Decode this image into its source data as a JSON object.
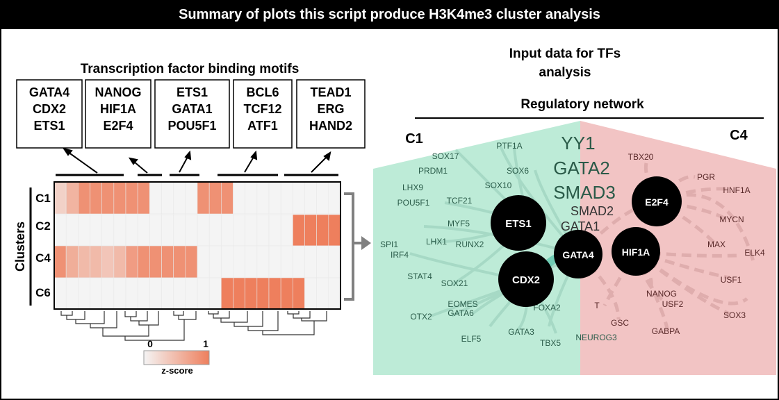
{
  "title": "Summary of plots this script produce H3K4me3 cluster analysis",
  "left": {
    "heading": "Transcription factor binding motifs",
    "motif_boxes": [
      {
        "lines": [
          "GATA4",
          "CDX2",
          "ETS1"
        ]
      },
      {
        "lines": [
          "NANOG",
          "HIF1A",
          "E2F4"
        ]
      },
      {
        "lines": [
          "ETS1",
          "GATA1",
          "POU5F1"
        ]
      },
      {
        "lines": [
          "BCL6",
          "TCF12",
          "ATF1"
        ]
      },
      {
        "lines": [
          "TEAD1",
          "ERG",
          "HAND2"
        ]
      }
    ],
    "clusters_label": "Clusters",
    "cluster_rows": [
      "C1",
      "C2",
      "C4",
      "C6"
    ],
    "colorbar": {
      "min_label": "0",
      "max_label": "1",
      "label": "z-score",
      "low_color": "#f4f4f4",
      "high_color": "#ee7f5d"
    }
  },
  "heatmap": {
    "columns": 24,
    "cells": [
      [
        0.3,
        0.55,
        0.85,
        0.85,
        0.85,
        0.85,
        0.85,
        0.85,
        0,
        0,
        0,
        0,
        0.85,
        0.85,
        0.85,
        0,
        0,
        0,
        0,
        0,
        0,
        0,
        0,
        0
      ],
      [
        0,
        0,
        0,
        0,
        0,
        0,
        0,
        0,
        0,
        0,
        0,
        0,
        0,
        0,
        0,
        0,
        0,
        0,
        0,
        0,
        1,
        1,
        1,
        1
      ],
      [
        0.85,
        0.6,
        0.5,
        0.5,
        0.4,
        0.5,
        0.75,
        0.85,
        0.85,
        0.85,
        0.85,
        0.85,
        0,
        0,
        0,
        0,
        0,
        0,
        0,
        0,
        0,
        0,
        0,
        0
      ],
      [
        0,
        0,
        0,
        0,
        0,
        0,
        0,
        0,
        0,
        0,
        0,
        0,
        0,
        0,
        1,
        1,
        1,
        1,
        1,
        1,
        1,
        0,
        0,
        0
      ]
    ]
  },
  "right": {
    "heading_line1": "Input data for TFs",
    "heading_line2": "analysis",
    "subheading": "Regulatory network",
    "c1_label": "C1",
    "c4_label": "C4",
    "c1_color": "#bdebd7",
    "c4_color": "#f2c4c4",
    "hubs": [
      "ETS1",
      "CDX2",
      "GATA4",
      "E2F4",
      "HIF1A"
    ],
    "large_labels": [
      "YY1",
      "GATA2",
      "SMAD3"
    ],
    "medium_labels": [
      "SMAD2",
      "GATA1"
    ],
    "c1_nodes": [
      "SOX17",
      "PTF1A",
      "PRDM1",
      "SOX6",
      "LHX9",
      "SOX10",
      "POU5F1",
      "TCF21",
      "MYF5",
      "SPI1",
      "IRF4",
      "LHX1",
      "RUNX2",
      "STAT4",
      "SOX21",
      "EOMES",
      "OTX2",
      "GATA6",
      "FOXA2",
      "GATA3",
      "ELF5",
      "TBX5",
      "NEUROG3"
    ],
    "c4_nodes": [
      "TBX20",
      "PGR",
      "HNF1A",
      "MYCN",
      "MAX",
      "ELK4",
      "NANOG",
      "USF1",
      "T",
      "USF2",
      "GSC",
      "SOX3",
      "GABPA"
    ]
  }
}
